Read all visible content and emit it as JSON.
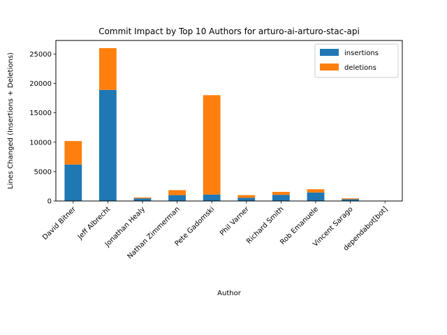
{
  "chart_data": {
    "type": "bar",
    "stacked": true,
    "title": "Commit Impact by Top 10 Authors for arturo-ai-arturo-stac-api",
    "xlabel": "Author",
    "ylabel": "Lines Changed (Insertions + Deletions)",
    "categories": [
      "David Bitner",
      "Jeff Albrecht",
      "Jonathan Healy",
      "Nathan Zimmerman",
      "Pete Gadomski",
      "Phil Varner",
      "Richard Smith",
      "Rob Emanuele",
      "Vincent Sarago",
      "dependabot[bot]"
    ],
    "series": [
      {
        "name": "insertions",
        "color": "#1f77b4",
        "values": [
          6200,
          18900,
          450,
          1000,
          1100,
          550,
          1050,
          1450,
          300,
          20
        ]
      },
      {
        "name": "deletions",
        "color": "#ff7f0e",
        "values": [
          4000,
          7100,
          150,
          850,
          16900,
          450,
          500,
          550,
          150,
          10
        ]
      }
    ],
    "ylim": [
      0,
      27300
    ],
    "yticks": [
      0,
      5000,
      10000,
      15000,
      20000,
      25000
    ],
    "legend_position": "top-right",
    "grid": false
  }
}
